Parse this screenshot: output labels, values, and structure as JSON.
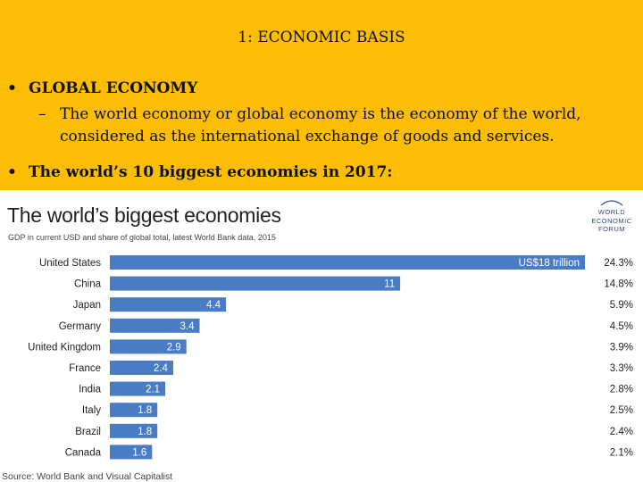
{
  "slide": {
    "title": "1: ECONOMIC BASIS",
    "bullets": {
      "b1_marker": "•",
      "b1": "GLOBAL ECONOMY",
      "sub_marker": "–",
      "sub_line1": "The world economy or global economy is the economy of the world,",
      "sub_line2": "considered as the international exchange of goods and services.",
      "b3_marker": "•",
      "b3": "The world’s 10 biggest economies in 2017:"
    },
    "colors": {
      "header_bg": "#fbbd06",
      "bar": "#4a7cc4"
    }
  },
  "logo": {
    "line1": "WORLD",
    "line2": "ECONOMIC",
    "line3": "FORUM"
  },
  "chart_data": {
    "type": "bar",
    "orientation": "horizontal",
    "title": "The world’s biggest economies",
    "subtitle": "GDP in current USD and share of global total, latest World Bank data, 2015",
    "categories": [
      "United States",
      "China",
      "Japan",
      "Germany",
      "United Kingdom",
      "France",
      "India",
      "Italy",
      "Brazil",
      "Canada"
    ],
    "values": [
      18,
      11,
      4.4,
      3.4,
      2.9,
      2.4,
      2.1,
      1.8,
      1.8,
      1.6
    ],
    "value_labels": [
      "US$18 trillion",
      "11",
      "4.4",
      "3.4",
      "2.9",
      "2.4",
      "2.1",
      "1.8",
      "1.8",
      "1.6"
    ],
    "shares": [
      "24.3%",
      "14.8%",
      "5.9%",
      "4.5%",
      "3.9%",
      "3.3%",
      "2.8%",
      "2.5%",
      "2.4%",
      "2.1%"
    ],
    "xlim": [
      0,
      18
    ],
    "source": "Source: World Bank and Visual Capitalist"
  }
}
